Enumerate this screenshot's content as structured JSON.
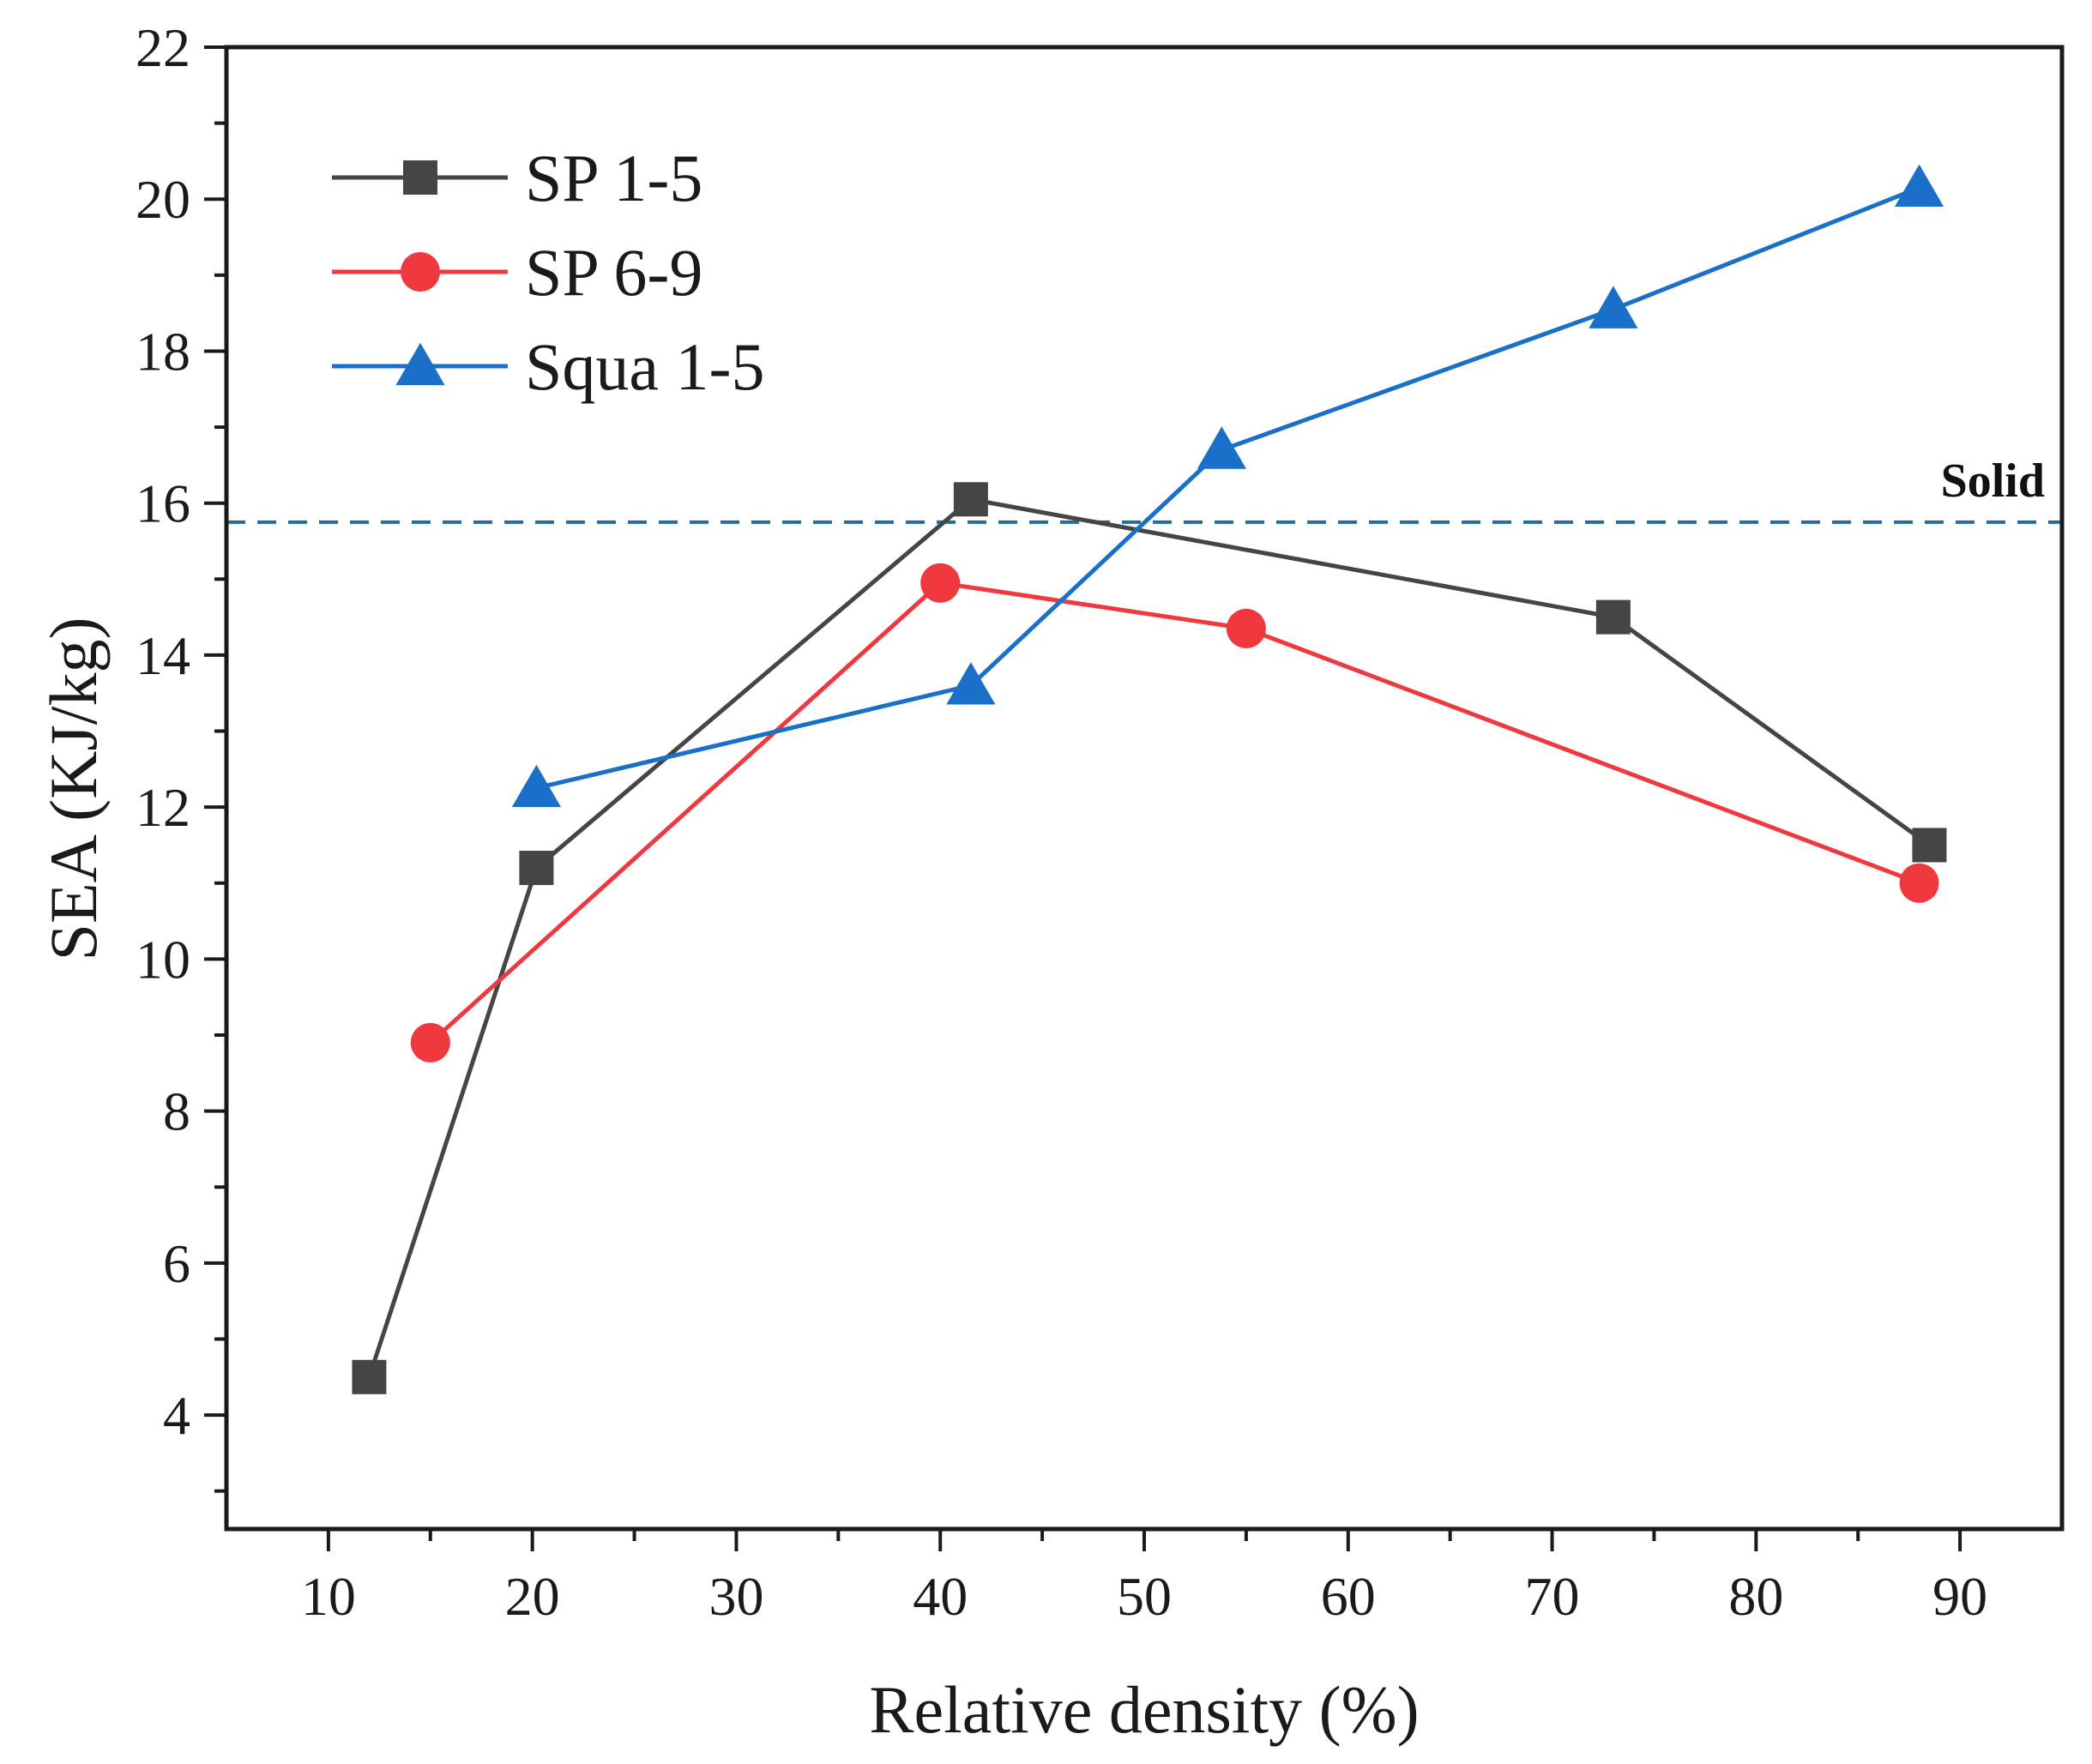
{
  "chart_data": {
    "type": "line",
    "title": "",
    "xlabel": "Relative density (%)",
    "ylabel": "SEA (KJ/kg)",
    "xlim": [
      5,
      95
    ],
    "ylim": [
      2.5,
      22
    ],
    "xticks": [
      10,
      20,
      30,
      40,
      50,
      60,
      70,
      80,
      90
    ],
    "yticks": [
      4,
      6,
      8,
      10,
      12,
      14,
      16,
      18,
      20,
      22
    ],
    "grid": false,
    "legend_position": "top-left",
    "series": [
      {
        "name": "SP 1-5",
        "marker": "square",
        "color": "#454545",
        "x": [
          12,
          20.2,
          41.5,
          73,
          88.5
        ],
        "y": [
          4.5,
          11.2,
          16.05,
          14.5,
          11.5
        ]
      },
      {
        "name": "SP 6-9",
        "marker": "circle",
        "color": "#f0393f",
        "x": [
          15,
          40,
          55,
          88
        ],
        "y": [
          8.9,
          14.95,
          14.35,
          11.0
        ]
      },
      {
        "name": "Squa 1-5",
        "marker": "triangle",
        "color": "#1a6fc8",
        "x": [
          20.2,
          41.5,
          53.8,
          73,
          88
        ],
        "y": [
          12.25,
          13.6,
          16.7,
          18.55,
          20.15
        ]
      }
    ],
    "reference_lines": [
      {
        "label": "Solid",
        "y": 15.75,
        "style": "dashed",
        "color": "#1f6e9c"
      }
    ]
  }
}
